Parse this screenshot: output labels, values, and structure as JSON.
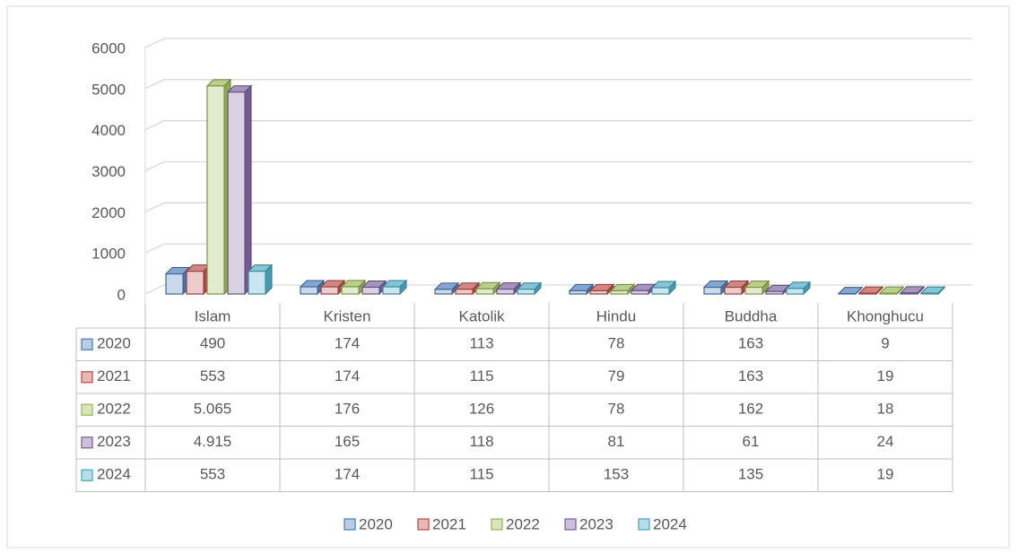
{
  "chart_data": {
    "type": "bar",
    "categories": [
      "Islam",
      "Kristen",
      "Katolik",
      "Hindu",
      "Buddha",
      "Khonghucu"
    ],
    "series": [
      {
        "name": "2020",
        "color": "#4f81bd",
        "values": [
          490,
          174,
          113,
          78,
          163,
          9
        ]
      },
      {
        "name": "2021",
        "color": "#c0504d",
        "values": [
          553,
          174,
          115,
          79,
          163,
          19
        ]
      },
      {
        "name": "2022",
        "color": "#9bbb59",
        "values": [
          5065,
          176,
          126,
          78,
          162,
          18
        ],
        "value_labels": [
          "5.065",
          "176",
          "126",
          "78",
          "162",
          "18"
        ]
      },
      {
        "name": "2023",
        "color": "#8064a2",
        "values": [
          4915,
          165,
          118,
          81,
          61,
          24
        ],
        "value_labels": [
          "4.915",
          "165",
          "118",
          "81",
          "61",
          "24"
        ]
      },
      {
        "name": "2024",
        "color": "#4bacc6",
        "values": [
          553,
          174,
          115,
          153,
          135,
          19
        ]
      }
    ],
    "ylim": [
      0,
      6000
    ],
    "yticks": [
      0,
      1000,
      2000,
      3000,
      4000,
      5000,
      6000
    ],
    "grid": true,
    "legend": "bottom",
    "data_table": true
  }
}
